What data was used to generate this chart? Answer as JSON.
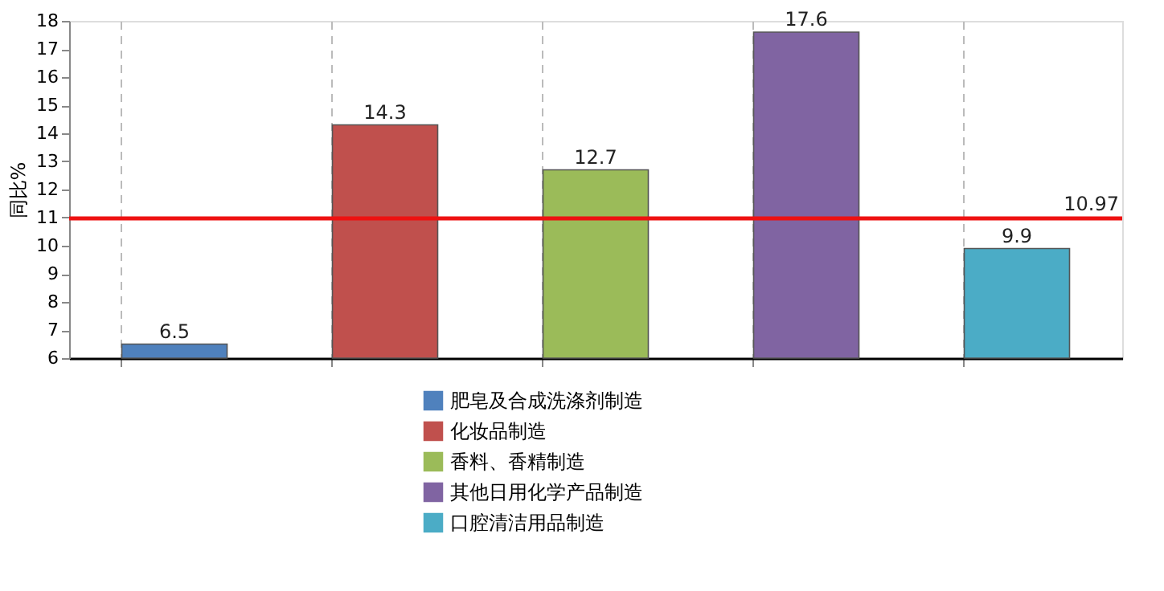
{
  "chart_data": {
    "type": "bar",
    "ylabel": "同比%",
    "categories": [
      null,
      null,
      null,
      null,
      null
    ],
    "series": [
      {
        "name": "肥皂及合成洗涤剂制造",
        "color": "#4f81bd",
        "values": [
          6.5,
          null,
          null,
          null,
          null
        ]
      },
      {
        "name": "化妆品制造",
        "color": "#c0504d",
        "values": [
          null,
          14.3,
          null,
          null,
          null
        ]
      },
      {
        "name": "香料、香精制造",
        "color": "#9bbb59",
        "values": [
          null,
          null,
          12.7,
          null,
          null
        ]
      },
      {
        "name": "其他日用化学产品制造",
        "color": "#8064a2",
        "values": [
          null,
          null,
          null,
          17.6,
          null
        ]
      },
      {
        "name": "口腔清洁用品制造",
        "color": "#4bacc6",
        "values": [
          null,
          null,
          null,
          null,
          9.9
        ]
      }
    ],
    "ylim": [
      6,
      18
    ],
    "yticks": [
      6,
      7,
      8,
      9,
      10,
      11,
      12,
      13,
      14,
      15,
      16,
      17,
      18
    ],
    "ref_lines": [
      {
        "axis": "y",
        "value": 10.97,
        "label": "10.97",
        "color": "#ee1111"
      }
    ],
    "data_labels": true,
    "grid": "x",
    "legend": "bottom"
  }
}
